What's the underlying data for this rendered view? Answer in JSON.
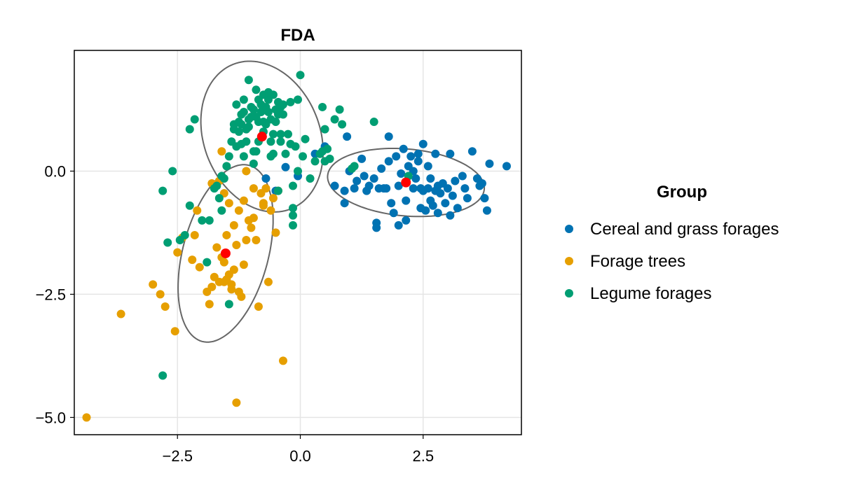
{
  "chart_data": {
    "type": "scatter",
    "title": "FDA",
    "xlabel": "",
    "ylabel": "",
    "xlim": [
      -4.6,
      4.5
    ],
    "ylim": [
      -5.35,
      2.45
    ],
    "xticks": [
      -2.5,
      0.0,
      2.5
    ],
    "xtick_labels": [
      "−2.5",
      "0.0",
      "2.5"
    ],
    "yticks": [
      -5.0,
      -2.5,
      0.0
    ],
    "ytick_labels": [
      "−5.0",
      "−2.5",
      "0.0"
    ],
    "grid": true,
    "legend": {
      "title": "Group",
      "placement": "right",
      "entries": [
        "Cereal and grass forages",
        "Forage trees",
        "Legume forages"
      ]
    },
    "centroid_color": "#ff0000",
    "ellipse_color": "#666666",
    "series": [
      {
        "name": "Cereal and grass forages",
        "color": "#0072b2",
        "centroid": [
          2.15,
          -0.23
        ],
        "ellipse": {
          "cx": 2.15,
          "cy": -0.23,
          "rx": 1.6,
          "ry": 0.68,
          "angle_deg": -5
        },
        "points": [
          [
            -0.7,
            -0.15
          ],
          [
            -0.3,
            0.08
          ],
          [
            -0.5,
            -0.4
          ],
          [
            -0.05,
            -0.1
          ],
          [
            0.3,
            0.35
          ],
          [
            0.5,
            0.5
          ],
          [
            0.7,
            -0.3
          ],
          [
            0.9,
            -0.4
          ],
          [
            0.9,
            -0.65
          ],
          [
            0.95,
            0.7
          ],
          [
            1.0,
            0.0
          ],
          [
            1.1,
            -0.35
          ],
          [
            1.15,
            -0.2
          ],
          [
            1.25,
            0.25
          ],
          [
            1.3,
            -0.1
          ],
          [
            1.35,
            -0.4
          ],
          [
            1.4,
            -0.3
          ],
          [
            1.5,
            -0.15
          ],
          [
            1.55,
            -1.05
          ],
          [
            1.55,
            -1.15
          ],
          [
            1.6,
            -0.35
          ],
          [
            1.65,
            0.05
          ],
          [
            1.7,
            -0.35
          ],
          [
            1.75,
            -0.35
          ],
          [
            1.8,
            0.2
          ],
          [
            1.8,
            0.7
          ],
          [
            1.85,
            -0.65
          ],
          [
            1.9,
            -0.85
          ],
          [
            1.95,
            0.3
          ],
          [
            2.0,
            -0.3
          ],
          [
            2.0,
            -1.1
          ],
          [
            2.05,
            -0.05
          ],
          [
            2.1,
            0.45
          ],
          [
            2.15,
            -0.6
          ],
          [
            2.15,
            -1.0
          ],
          [
            2.2,
            0.1
          ],
          [
            2.25,
            0.3
          ],
          [
            2.3,
            -0.35
          ],
          [
            2.3,
            0.0
          ],
          [
            2.35,
            -0.15
          ],
          [
            2.4,
            0.2
          ],
          [
            2.4,
            0.35
          ],
          [
            2.45,
            -0.35
          ],
          [
            2.45,
            -0.75
          ],
          [
            2.5,
            -0.4
          ],
          [
            2.5,
            0.55
          ],
          [
            2.55,
            -0.8
          ],
          [
            2.6,
            -0.35
          ],
          [
            2.6,
            0.1
          ],
          [
            2.65,
            -0.15
          ],
          [
            2.65,
            -0.6
          ],
          [
            2.7,
            -0.7
          ],
          [
            2.75,
            0.35
          ],
          [
            2.75,
            -0.4
          ],
          [
            2.8,
            -0.3
          ],
          [
            2.8,
            -0.85
          ],
          [
            2.85,
            -0.45
          ],
          [
            2.9,
            -0.25
          ],
          [
            2.95,
            -0.65
          ],
          [
            3.0,
            -0.35
          ],
          [
            3.05,
            0.35
          ],
          [
            3.05,
            -0.9
          ],
          [
            3.1,
            -0.5
          ],
          [
            3.15,
            -0.2
          ],
          [
            3.2,
            -0.75
          ],
          [
            3.3,
            -0.1
          ],
          [
            3.35,
            -0.35
          ],
          [
            3.4,
            -0.55
          ],
          [
            3.5,
            0.4
          ],
          [
            3.6,
            -0.15
          ],
          [
            3.65,
            -0.3
          ],
          [
            3.7,
            -0.25
          ],
          [
            3.75,
            -0.55
          ],
          [
            3.8,
            -0.8
          ],
          [
            3.85,
            0.15
          ],
          [
            4.2,
            0.1
          ]
        ]
      },
      {
        "name": "Forage trees",
        "color": "#e69f00",
        "centroid": [
          -1.52,
          -1.67
        ],
        "ellipse": {
          "cx": -1.52,
          "cy": -1.67,
          "rx": 0.87,
          "ry": 1.85,
          "angle_deg": -15
        },
        "points": [
          [
            -4.35,
            -5.0
          ],
          [
            -3.65,
            -2.9
          ],
          [
            -3.0,
            -2.3
          ],
          [
            -2.85,
            -2.5
          ],
          [
            -2.75,
            -2.75
          ],
          [
            -2.55,
            -3.25
          ],
          [
            -2.5,
            -1.65
          ],
          [
            -2.4,
            -1.35
          ],
          [
            -2.2,
            -1.8
          ],
          [
            -2.15,
            -1.3
          ],
          [
            -2.05,
            -1.95
          ],
          [
            -1.9,
            -2.45
          ],
          [
            -1.85,
            -2.7
          ],
          [
            -1.8,
            -2.35
          ],
          [
            -1.75,
            -2.15
          ],
          [
            -1.7,
            -1.55
          ],
          [
            -1.65,
            -2.25
          ],
          [
            -1.6,
            -1.75
          ],
          [
            -1.55,
            -1.85
          ],
          [
            -1.5,
            -1.3
          ],
          [
            -1.45,
            -2.1
          ],
          [
            -1.4,
            -2.3
          ],
          [
            -1.35,
            -2.0
          ],
          [
            -1.3,
            -1.5
          ],
          [
            -1.25,
            -2.45
          ],
          [
            -1.2,
            -2.55
          ],
          [
            -1.15,
            -1.9
          ],
          [
            -1.1,
            -1.4
          ],
          [
            -1.05,
            -1.0
          ],
          [
            -1.0,
            -1.15
          ],
          [
            -0.95,
            -0.95
          ],
          [
            -0.9,
            -1.4
          ],
          [
            -0.85,
            -2.75
          ],
          [
            -0.8,
            -0.45
          ],
          [
            -0.75,
            -0.65
          ],
          [
            -0.7,
            -0.35
          ],
          [
            -0.65,
            -2.25
          ],
          [
            -0.6,
            -0.8
          ],
          [
            -0.55,
            -0.55
          ],
          [
            -0.5,
            -1.25
          ],
          [
            -0.45,
            -0.4
          ],
          [
            -1.45,
            -0.65
          ],
          [
            -1.25,
            -0.8
          ],
          [
            -1.3,
            -4.7
          ],
          [
            -0.35,
            -3.85
          ],
          [
            -1.65,
            -0.2
          ],
          [
            -1.8,
            -0.25
          ],
          [
            -2.1,
            -0.8
          ],
          [
            -1.15,
            -0.6
          ],
          [
            -0.95,
            -0.35
          ],
          [
            -1.55,
            -0.45
          ],
          [
            -1.35,
            -1.1
          ],
          [
            -0.75,
            -0.7
          ],
          [
            -1.5,
            -2.2
          ],
          [
            -1.4,
            -2.4
          ],
          [
            -1.55,
            -2.25
          ],
          [
            -1.6,
            0.4
          ],
          [
            -1.1,
            0.0
          ]
        ]
      },
      {
        "name": "Legume forages",
        "color": "#009e73",
        "centroid": [
          -0.78,
          0.7
        ],
        "ellipse": {
          "cx": -0.78,
          "cy": 0.7,
          "rx": 1.18,
          "ry": 1.58,
          "angle_deg": 22
        },
        "points": [
          [
            -2.8,
            -0.4
          ],
          [
            -2.8,
            -4.15
          ],
          [
            -2.7,
            -1.45
          ],
          [
            -2.6,
            0.0
          ],
          [
            -2.45,
            -1.4
          ],
          [
            -2.35,
            -1.3
          ],
          [
            -2.25,
            -0.7
          ],
          [
            -2.25,
            0.85
          ],
          [
            -2.15,
            1.05
          ],
          [
            -2.0,
            -1.0
          ],
          [
            -1.9,
            -1.85
          ],
          [
            -1.85,
            -1.0
          ],
          [
            -1.75,
            -0.35
          ],
          [
            -1.65,
            -0.55
          ],
          [
            -1.6,
            -0.8
          ],
          [
            -1.55,
            -0.15
          ],
          [
            -1.45,
            0.3
          ],
          [
            -1.4,
            0.6
          ],
          [
            -1.35,
            0.95
          ],
          [
            -1.3,
            0.5
          ],
          [
            -1.25,
            0.8
          ],
          [
            -1.2,
            1.15
          ],
          [
            -1.15,
            0.3
          ],
          [
            -1.1,
            0.6
          ],
          [
            -1.05,
            0.9
          ],
          [
            -1.0,
            1.3
          ],
          [
            -0.95,
            0.15
          ],
          [
            -0.9,
            0.4
          ],
          [
            -0.85,
            1.0
          ],
          [
            -0.8,
            1.35
          ],
          [
            -0.75,
            0.8
          ],
          [
            -0.7,
            1.55
          ],
          [
            -0.65,
            1.2
          ],
          [
            -0.6,
            0.3
          ],
          [
            -0.55,
            0.75
          ],
          [
            -0.5,
            1.0
          ],
          [
            -0.45,
            1.4
          ],
          [
            -0.4,
            0.6
          ],
          [
            -0.35,
            1.15
          ],
          [
            -0.3,
            0.35
          ],
          [
            -0.25,
            0.75
          ],
          [
            -0.2,
            1.4
          ],
          [
            -0.15,
            -0.3
          ],
          [
            -0.1,
            0.5
          ],
          [
            -0.05,
            1.45
          ],
          [
            0.0,
            1.95
          ],
          [
            0.05,
            0.3
          ],
          [
            0.1,
            0.65
          ],
          [
            0.2,
            -0.15
          ],
          [
            0.3,
            0.2
          ],
          [
            0.4,
            0.35
          ],
          [
            0.45,
            0.4
          ],
          [
            0.5,
            0.85
          ],
          [
            0.55,
            0.45
          ],
          [
            0.6,
            0.25
          ],
          [
            0.7,
            1.05
          ],
          [
            0.8,
            1.25
          ],
          [
            0.85,
            0.95
          ],
          [
            1.05,
            0.05
          ],
          [
            1.5,
            1.0
          ],
          [
            2.2,
            -0.1
          ],
          [
            -1.45,
            -2.7
          ],
          [
            -0.15,
            -1.1
          ],
          [
            -0.15,
            -0.9
          ],
          [
            -0.15,
            -0.75
          ],
          [
            -1.35,
            0.85
          ],
          [
            -1.25,
            1.0
          ],
          [
            -1.15,
            1.2
          ],
          [
            -1.05,
            1.05
          ],
          [
            -0.95,
            1.25
          ],
          [
            -0.9,
            1.1
          ],
          [
            -0.85,
            1.45
          ],
          [
            -0.8,
            1.2
          ],
          [
            -0.75,
            1.0
          ],
          [
            -0.7,
            1.3
          ],
          [
            -0.65,
            1.45
          ],
          [
            -0.6,
            1.05
          ],
          [
            -0.55,
            1.55
          ],
          [
            -0.5,
            1.25
          ],
          [
            -0.45,
            1.15
          ],
          [
            -0.4,
            1.3
          ],
          [
            -0.35,
            1.35
          ],
          [
            -0.95,
            0.4
          ],
          [
            -0.85,
            0.6
          ],
          [
            -1.2,
            0.55
          ],
          [
            -1.1,
            0.85
          ],
          [
            -1.0,
            1.1
          ],
          [
            -0.6,
            0.6
          ],
          [
            -0.55,
            0.35
          ],
          [
            -0.2,
            0.55
          ],
          [
            -0.05,
            0.0
          ],
          [
            0.5,
            0.2
          ],
          [
            -1.05,
            1.85
          ],
          [
            -1.3,
            1.35
          ],
          [
            -0.9,
            1.65
          ],
          [
            -0.75,
            1.55
          ],
          [
            -0.65,
            1.6
          ],
          [
            -1.15,
            1.45
          ],
          [
            -1.2,
            0.95
          ],
          [
            -0.7,
            0.95
          ],
          [
            -0.4,
            0.75
          ],
          [
            -0.45,
            -0.4
          ],
          [
            0.45,
            1.3
          ],
          [
            1.1,
            0.1
          ],
          [
            -1.6,
            -0.1
          ],
          [
            -1.5,
            0.1
          ],
          [
            -1.7,
            -0.3
          ]
        ]
      }
    ]
  }
}
